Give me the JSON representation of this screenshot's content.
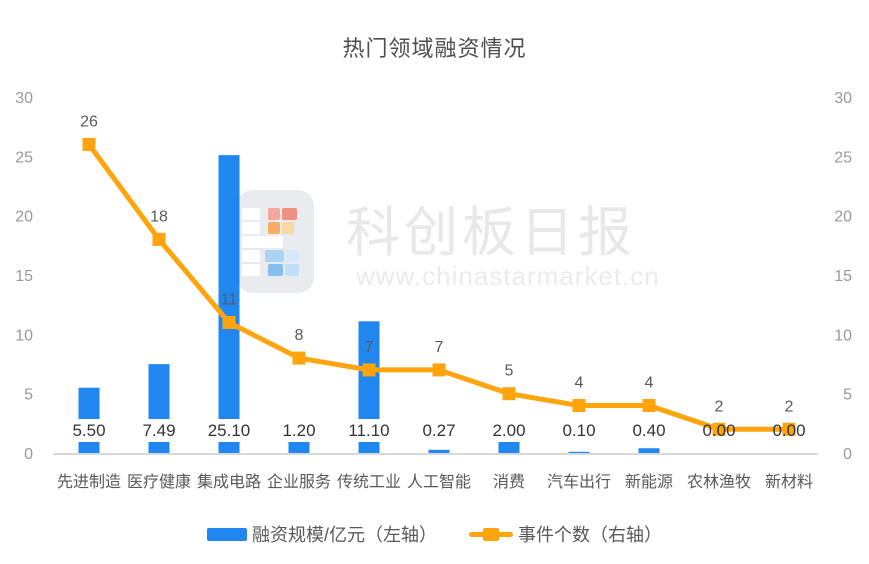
{
  "title": "热门领域融资情况",
  "watermark": {
    "brand": "科创板日报",
    "url": "www.chinastarmarket.cn"
  },
  "legend": {
    "bar_label": "融资规模/亿元（左轴）",
    "line_label": "事件个数（右轴）"
  },
  "colors": {
    "bar_blue": "#2187F0",
    "line_orange": "#FFA40D",
    "axis_line": "#D8D8D8",
    "tick_text": "#999999",
    "bar_label_text": "#333333",
    "gray_label_text": "#595959"
  },
  "chart_data": {
    "type": "combo-bar-line",
    "title": "热门领域融资情况",
    "categories": [
      "先进制造",
      "医疗健康",
      "集成电路",
      "企业服务",
      "传统工业",
      "人工智能",
      "消费",
      "汽车出行",
      "新能源",
      "农林渔牧",
      "新材料"
    ],
    "series": [
      {
        "name": "融资规模/亿元（左轴）",
        "type": "bar",
        "axis": "left",
        "values": [
          5.5,
          7.49,
          25.1,
          1.2,
          11.1,
          0.27,
          2.0,
          0.1,
          0.4,
          0.0,
          0.0
        ],
        "labels": [
          "5.50",
          "7.49",
          "25.10",
          "1.20",
          "11.10",
          "0.27",
          "2.00",
          "0.10",
          "0.40",
          "0.00",
          "0.00"
        ]
      },
      {
        "name": "事件个数（右轴）",
        "type": "line",
        "axis": "right",
        "values": [
          26,
          18,
          11,
          8,
          7,
          7,
          5,
          4,
          4,
          2,
          2
        ],
        "labels": [
          "26",
          "18",
          "11",
          "8",
          "7",
          "7",
          "5",
          "4",
          "4",
          "2",
          "2"
        ]
      }
    ],
    "left_axis": {
      "min": 0,
      "max": 30,
      "ticks": [
        0,
        5,
        10,
        15,
        20,
        25,
        30
      ]
    },
    "right_axis": {
      "min": 0,
      "max": 30,
      "ticks": [
        0,
        5,
        10,
        15,
        20,
        25,
        30
      ]
    },
    "grid": false,
    "legend_position": "bottom"
  }
}
